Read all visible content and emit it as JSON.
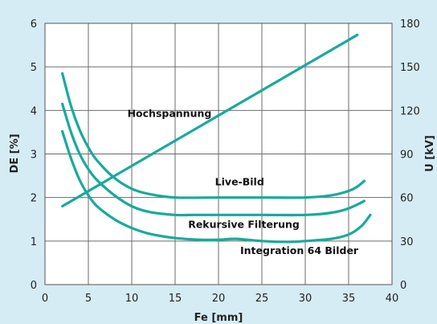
{
  "chart_data": {
    "type": "line",
    "title": "",
    "xlabel": "Fe [mm]",
    "ylabel_left": "DE [%]",
    "ylabel_right": "U [kV]",
    "xlim": [
      0,
      40
    ],
    "ylim_left": [
      0,
      6
    ],
    "ylim_right": [
      0,
      180
    ],
    "x_ticks": [
      "0",
      "5",
      "10",
      "15",
      "20",
      "25",
      "30",
      "35",
      "40"
    ],
    "y_ticks_left": [
      "0",
      "1",
      "2",
      "3",
      "4",
      "5",
      "6"
    ],
    "y_ticks_right": [
      "0",
      "30",
      "60",
      "90",
      "120",
      "150",
      "180"
    ],
    "grid": true,
    "colors": {
      "background": "#d6ecf5",
      "plot": "#ffffff",
      "series": "#18aa9c",
      "grid": "#6b6b6b"
    },
    "series": [
      {
        "name": "Hochspannung",
        "axis": "right",
        "x": [
          2,
          36
        ],
        "y": [
          54,
          172
        ]
      },
      {
        "name": "Live-Bild",
        "axis": "left",
        "x": [
          2,
          3,
          4,
          5,
          6,
          8,
          10,
          12,
          15,
          20,
          25,
          30,
          33,
          35,
          36,
          36.8
        ],
        "y": [
          4.85,
          4.1,
          3.55,
          3.15,
          2.85,
          2.45,
          2.2,
          2.08,
          2.0,
          2.0,
          2.0,
          2.0,
          2.05,
          2.15,
          2.25,
          2.38
        ]
      },
      {
        "name": "Rekursive Filterung",
        "axis": "left",
        "x": [
          2,
          3,
          4,
          5,
          6,
          8,
          10,
          12,
          15,
          17,
          20,
          25,
          30,
          33,
          35,
          36.8
        ],
        "y": [
          4.15,
          3.5,
          3.0,
          2.65,
          2.4,
          2.05,
          1.8,
          1.67,
          1.6,
          1.6,
          1.6,
          1.6,
          1.6,
          1.65,
          1.75,
          1.92
        ]
      },
      {
        "name": "Integration 64 Bilder",
        "axis": "left",
        "x": [
          2,
          3,
          4,
          5,
          6,
          8,
          10,
          12,
          15,
          18,
          20,
          22,
          25,
          28,
          30,
          33,
          35,
          36.5,
          37.5
        ],
        "y": [
          3.52,
          2.9,
          2.4,
          2.05,
          1.8,
          1.5,
          1.3,
          1.17,
          1.07,
          1.03,
          1.03,
          1.05,
          1.0,
          0.98,
          1.0,
          1.05,
          1.15,
          1.35,
          1.6
        ]
      }
    ],
    "annotations": [
      {
        "text": "Hochspannung",
        "x": 9.5,
        "y": 3.85
      },
      {
        "text": "Live-Bild",
        "x": 19.6,
        "y": 2.28
      },
      {
        "text": "Rekursive Filterung",
        "x": 16.5,
        "y": 1.3
      },
      {
        "text": "Integration 64 Bilder",
        "x": 22.5,
        "y": 0.7
      }
    ]
  }
}
